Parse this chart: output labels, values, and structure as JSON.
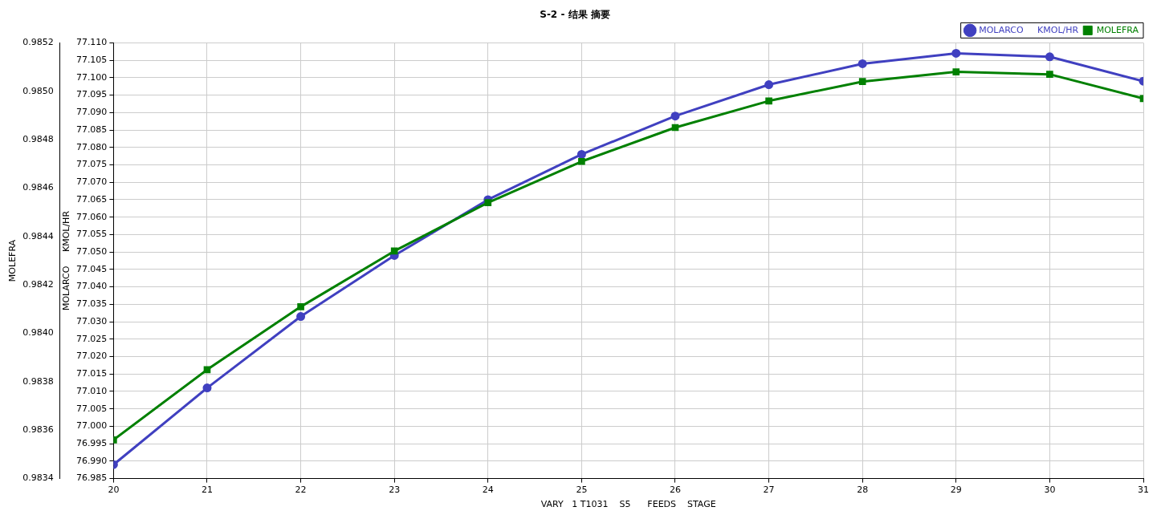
{
  "chart_data": {
    "type": "line",
    "title": "S-2 - 结果 摘要",
    "xlabel": "VARY   1 T1031    S5      FEEDS    STAGE",
    "ylabel": "MOLARCO     KMOL/HR",
    "y2label": "MOLEFRA",
    "x": [
      20,
      21,
      22,
      23,
      24,
      25,
      26,
      27,
      28,
      29,
      30,
      31
    ],
    "series": [
      {
        "name": "MOLARCO     KMOL/HR",
        "color": "#4040c0",
        "marker": "circle",
        "values": [
          76.989,
          77.011,
          77.0315,
          77.049,
          77.065,
          77.078,
          77.089,
          77.098,
          77.104,
          77.107,
          77.106,
          77.099
        ]
      },
      {
        "name": "MOLEFRA",
        "color": "#008000",
        "marker": "square",
        "axis": "y2",
        "values": [
          0.98356,
          0.98385,
          0.98411,
          0.98434,
          0.98454,
          0.98471,
          0.98485,
          0.98496,
          0.98504,
          0.98508,
          0.98507,
          0.98497
        ]
      }
    ],
    "xlim": [
      20,
      31
    ],
    "xticks": [
      20,
      21,
      22,
      23,
      24,
      25,
      26,
      27,
      28,
      29,
      30,
      31
    ],
    "ylim": [
      76.985,
      77.11
    ],
    "yticks": [
      {
        "value": 76.985,
        "label": "76.985"
      },
      {
        "value": 76.99,
        "label": "76.990"
      },
      {
        "value": 76.995,
        "label": "76.995"
      },
      {
        "value": 77.0,
        "label": "77.000"
      },
      {
        "value": 77.005,
        "label": "77.005"
      },
      {
        "value": 77.01,
        "label": "77.010"
      },
      {
        "value": 77.015,
        "label": "77.015"
      },
      {
        "value": 77.02,
        "label": "77.020"
      },
      {
        "value": 77.025,
        "label": "77.025"
      },
      {
        "value": 77.03,
        "label": "77.030"
      },
      {
        "value": 77.035,
        "label": "77.035"
      },
      {
        "value": 77.04,
        "label": "77.040"
      },
      {
        "value": 77.045,
        "label": "77.045"
      },
      {
        "value": 77.05,
        "label": "77.050"
      },
      {
        "value": 77.055,
        "label": "77.055"
      },
      {
        "value": 77.06,
        "label": "77.060"
      },
      {
        "value": 77.065,
        "label": "77.065"
      },
      {
        "value": 77.07,
        "label": "77.070"
      },
      {
        "value": 77.075,
        "label": "77.075"
      },
      {
        "value": 77.08,
        "label": "77.080"
      },
      {
        "value": 77.085,
        "label": "77.085"
      },
      {
        "value": 77.09,
        "label": "77.090"
      },
      {
        "value": 77.095,
        "label": "77.095"
      },
      {
        "value": 77.1,
        "label": "77.100"
      },
      {
        "value": 77.105,
        "label": "77.105"
      },
      {
        "value": 77.11,
        "label": "77.110"
      }
    ],
    "y2lim": [
      0.9834,
      0.9852
    ],
    "y2ticks": [
      0.9834,
      0.9836,
      0.9838,
      {
        "value": 0.984,
        "label": "0.9840"
      },
      0.9842,
      0.9844,
      0.9846,
      0.9848,
      {
        "value": 0.985,
        "label": "0.9850"
      },
      0.9852
    ],
    "grid": true,
    "legend": "top right",
    "line_style": "solid"
  }
}
